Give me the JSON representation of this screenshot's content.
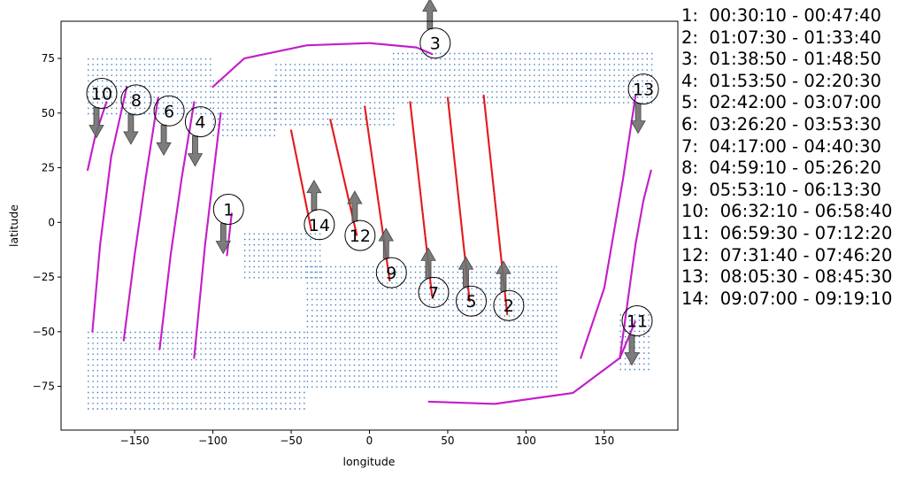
{
  "chart_data": {
    "type": "scatter",
    "title": "",
    "xlabel": "longitude",
    "ylabel": "latitude",
    "xlim": [
      -197,
      197
    ],
    "ylim": [
      -95,
      92
    ],
    "xticks": [
      -150,
      -100,
      -50,
      0,
      50,
      100,
      150
    ],
    "yticks": [
      -75,
      -50,
      -25,
      0,
      25,
      50,
      75
    ],
    "grid": false,
    "colors": {
      "coverage": "#3b7bbf",
      "track_magenta": "#c21ec8",
      "track_red": "#e31a1c",
      "arrow": "#6e6e6e"
    },
    "coverage_regions": [
      {
        "lon": [
          -180,
          -100
        ],
        "lat": [
          50,
          76
        ]
      },
      {
        "lon": [
          -100,
          -60
        ],
        "lat": [
          40,
          65
        ]
      },
      {
        "lon": [
          -60,
          15
        ],
        "lat": [
          45,
          73
        ]
      },
      {
        "lon": [
          15,
          180
        ],
        "lat": [
          55,
          78
        ]
      },
      {
        "lon": [
          -180,
          -40
        ],
        "lat": [
          -85,
          -48
        ]
      },
      {
        "lon": [
          -40,
          120
        ],
        "lat": [
          -75,
          -20
        ]
      },
      {
        "lon": [
          -80,
          -30
        ],
        "lat": [
          -25,
          -5
        ]
      },
      {
        "lon": [
          160,
          180
        ],
        "lat": [
          -67,
          -42
        ]
      }
    ],
    "tracks": [
      {
        "label": "1",
        "time": "00:30:10 - 00:47:40",
        "color": "magenta",
        "points": [
          [
            -88,
            4
          ],
          [
            -91,
            -15
          ]
        ],
        "marker": [
          -90,
          6
        ],
        "arrow": "down"
      },
      {
        "label": "2",
        "time": "01:07:30 - 01:33:40",
        "color": "red",
        "points": [
          [
            73,
            58
          ],
          [
            88,
            -42
          ]
        ],
        "marker": [
          89,
          -38
        ],
        "arrow": "up"
      },
      {
        "label": "3",
        "time": "01:38:50 - 01:48:50",
        "color": "magenta",
        "points": [
          [
            -100,
            62
          ],
          [
            -80,
            75
          ],
          [
            -40,
            81
          ],
          [
            0,
            82
          ],
          [
            30,
            80
          ],
          [
            40,
            77
          ]
        ],
        "marker": [
          42,
          82
        ],
        "arrow": "up"
      },
      {
        "label": "4",
        "time": "01:53:50 - 02:20:30",
        "color": "magenta",
        "points": [
          [
            -95,
            50
          ],
          [
            -100,
            20
          ],
          [
            -105,
            -10
          ],
          [
            -112,
            -62
          ]
        ],
        "marker": [
          -108,
          46
        ],
        "arrow": "down"
      },
      {
        "label": "5",
        "time": "02:42:00 - 03:07:00",
        "color": "red",
        "points": [
          [
            50,
            57
          ],
          [
            64,
            -36
          ]
        ],
        "marker": [
          65,
          -36
        ],
        "arrow": "up"
      },
      {
        "label": "6",
        "time": "03:26:20 - 03:53:30",
        "color": "magenta",
        "points": [
          [
            -112,
            55
          ],
          [
            -120,
            20
          ],
          [
            -127,
            -15
          ],
          [
            -134,
            -58
          ]
        ],
        "marker": [
          -128,
          51
        ],
        "arrow": "down"
      },
      {
        "label": "7",
        "time": "04:17:00 - 04:40:30",
        "color": "red",
        "points": [
          [
            26,
            55
          ],
          [
            40,
            -34
          ]
        ],
        "marker": [
          41,
          -32
        ],
        "arrow": "up"
      },
      {
        "label": "8",
        "time": "04:59:10 - 05:26:20",
        "color": "magenta",
        "points": [
          [
            -135,
            57
          ],
          [
            -143,
            20
          ],
          [
            -150,
            -15
          ],
          [
            -157,
            -54
          ]
        ],
        "marker": [
          -149,
          56
        ],
        "arrow": "down"
      },
      {
        "label": "9",
        "time": "05:53:10 - 06:13:30",
        "color": "red",
        "points": [
          [
            -3,
            53
          ],
          [
            13,
            -27
          ]
        ],
        "marker": [
          14,
          -23
        ],
        "arrow": "up"
      },
      {
        "label": "10",
        "time": "06:32:10 - 06:58:40",
        "color": "magenta",
        "points": [
          [
            -155,
            62
          ],
          [
            -165,
            30
          ],
          [
            -172,
            -10
          ],
          [
            -177,
            -50
          ]
        ],
        "marker": [
          -171,
          59
        ],
        "arrow": "down"
      },
      {
        "label": "11",
        "time": "06:59:30 - 07:12:20",
        "color": "magenta",
        "points": [
          [
            38,
            -82
          ],
          [
            80,
            -83
          ],
          [
            130,
            -78
          ],
          [
            160,
            -62
          ],
          [
            170,
            -45
          ]
        ],
        "marker": [
          171,
          -45
        ],
        "arrow": "down"
      },
      {
        "label": "12",
        "time": "07:31:40 - 07:46:20",
        "color": "red",
        "points": [
          [
            -25,
            47
          ],
          [
            -8,
            -6
          ]
        ],
        "marker": [
          -6,
          -6
        ],
        "arrow": "up"
      },
      {
        "label": "13",
        "time": "08:05:30 - 08:45:30",
        "color": "magenta",
        "points": [
          [
            135,
            -62
          ],
          [
            150,
            -30
          ],
          [
            162,
            20
          ],
          [
            170,
            58
          ]
        ],
        "marker": [
          175,
          61
        ],
        "arrow": "down"
      },
      {
        "label": "14",
        "time": "09:07:00 - 09:19:10",
        "color": "red",
        "points": [
          [
            -50,
            42
          ],
          [
            -37,
            -4
          ]
        ],
        "marker": [
          -32,
          -1
        ],
        "arrow": "up"
      },
      {
        "label": "",
        "time": "",
        "color": "magenta",
        "points": [
          [
            160,
            -62
          ],
          [
            170,
            -10
          ],
          [
            175,
            10
          ],
          [
            180,
            24
          ]
        ],
        "marker": null,
        "arrow": null
      },
      {
        "label": "",
        "time": "",
        "color": "magenta",
        "points": [
          [
            -180,
            24
          ],
          [
            -175,
            40
          ],
          [
            -168,
            55
          ]
        ],
        "marker": null,
        "arrow": null
      }
    ]
  },
  "legend": [
    "1:  00:30:10 - 00:47:40",
    "2:  01:07:30 - 01:33:40",
    "3:  01:38:50 - 01:48:50",
    "4:  01:53:50 - 02:20:30",
    "5:  02:42:00 - 03:07:00",
    "6:  03:26:20 - 03:53:30",
    "7:  04:17:00 - 04:40:30",
    "8:  04:59:10 - 05:26:20",
    "9:  05:53:10 - 06:13:30",
    "10:  06:32:10 - 06:58:40",
    "11:  06:59:30 - 07:12:20",
    "12:  07:31:40 - 07:46:20",
    "13:  08:05:30 - 08:45:30",
    "14:  09:07:00 - 09:19:10"
  ]
}
